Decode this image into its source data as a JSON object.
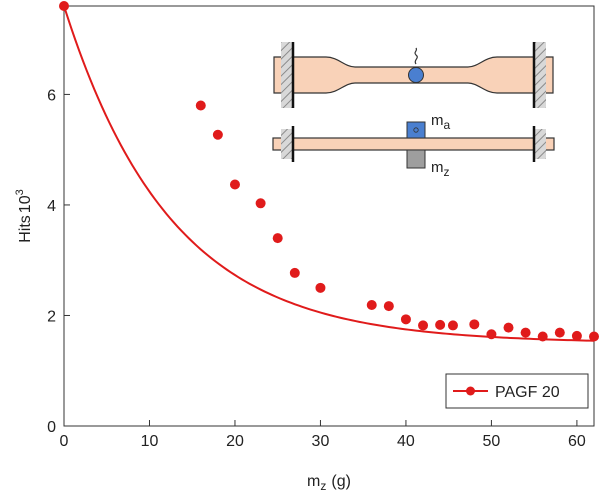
{
  "chart_data": {
    "type": "scatter",
    "title": "",
    "xlabel": {
      "base": "m",
      "sub": "z",
      "unit": "(g)"
    },
    "ylabel": {
      "base": "Hits",
      "mult": "10",
      "exp": "3"
    },
    "xlim": [
      0,
      62
    ],
    "ylim": [
      0,
      7.6
    ],
    "x_ticks": [
      0,
      10,
      20,
      30,
      40,
      50,
      60
    ],
    "y_ticks": [
      0,
      2,
      4,
      6
    ],
    "grid": false,
    "legend": {
      "label": "PAGF 20",
      "position": "bottom-right"
    },
    "series": [
      {
        "name": "PAGF 20",
        "color": "#e01b1b",
        "x": [
          0,
          16,
          18,
          20,
          23,
          25,
          27,
          30,
          36,
          38,
          40,
          42,
          44,
          45.5,
          48,
          50,
          52,
          54,
          56,
          58,
          60,
          62
        ],
        "y": [
          7.6,
          5.8,
          5.27,
          4.37,
          4.03,
          3.4,
          2.77,
          2.5,
          2.19,
          2.17,
          1.93,
          1.82,
          1.83,
          1.82,
          1.84,
          1.66,
          1.78,
          1.69,
          1.62,
          1.69,
          1.63,
          1.62
        ]
      }
    ],
    "fit": {
      "color": "#e01b1b",
      "model": "exponential decay y = y0 + A*exp(-x/t)",
      "y0": 1.5,
      "A": 6.1,
      "t": 12.5
    }
  },
  "inset": {
    "label_a": {
      "base": "m",
      "sub": "a"
    },
    "label_z": {
      "base": "m",
      "sub": "z"
    }
  },
  "colors": {
    "series": "#e01b1b",
    "specimen": "#f9d2b8",
    "mass_a": "#4a7fd0",
    "mass_z": "#9e9e9e",
    "ball": "#4a7fd0"
  }
}
